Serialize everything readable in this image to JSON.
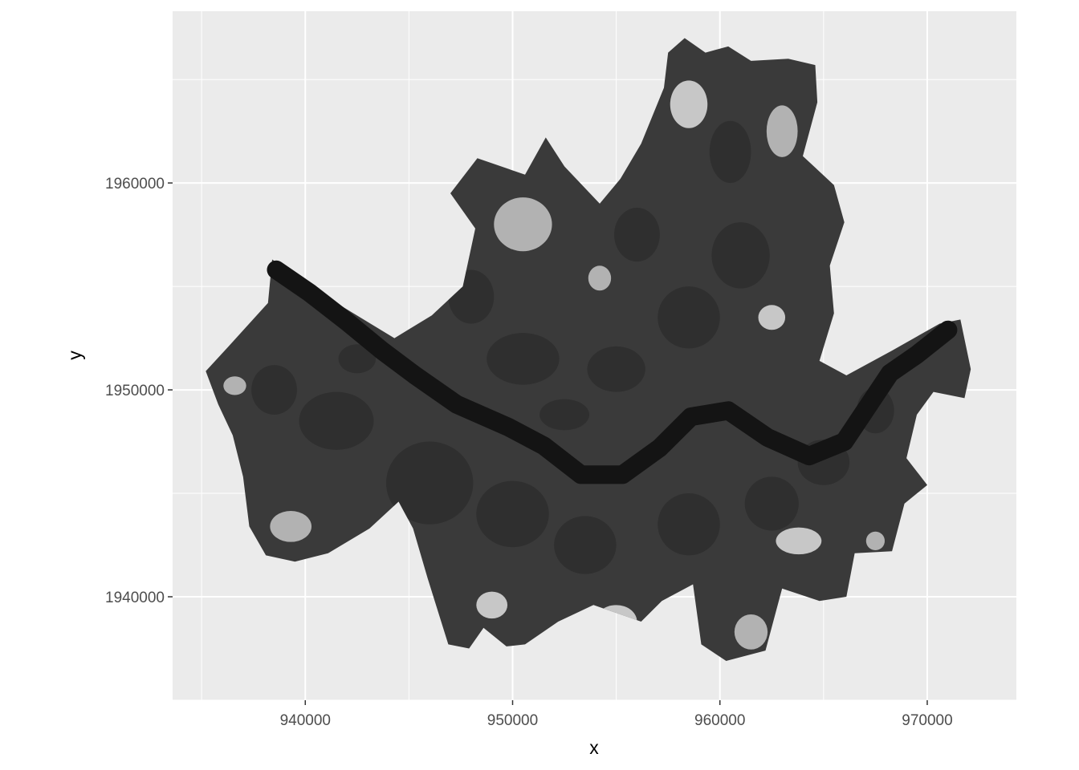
{
  "chart_data": {
    "type": "heatmap",
    "title": "",
    "xlabel": "x",
    "ylabel": "y",
    "xlim": [
      933600,
      974300
    ],
    "ylim": [
      1935000,
      1968300
    ],
    "x_ticks": [
      940000,
      950000,
      960000,
      970000
    ],
    "x_tick_labels": [
      "940000",
      "950000",
      "960000",
      "970000"
    ],
    "y_ticks": [
      1940000,
      1950000,
      1960000
    ],
    "y_tick_labels": [
      "1940000",
      "1950000",
      "1960000"
    ],
    "x_minor": [
      935000,
      945000,
      955000,
      965000
    ],
    "y_minor": [
      1935000,
      1945000,
      1955000,
      1965000
    ],
    "grid": true,
    "legend": "none",
    "colors": {
      "panel_background": "#ebebeb",
      "grid_line": "#ffffff",
      "urban": "#3a3a3a",
      "urban_dark": "#2b2b2b",
      "vegetation": "#b8b8b8",
      "vegetation_light": "#cfcfcf",
      "river": "#141414"
    },
    "raster_region": {
      "outline": [
        [
          935200,
          1950900
        ],
        [
          936300,
          1952100
        ],
        [
          938200,
          1954200
        ],
        [
          938400,
          1956300
        ],
        [
          941500,
          1954200
        ],
        [
          944300,
          1952500
        ],
        [
          946100,
          1953600
        ],
        [
          947600,
          1955000
        ],
        [
          948200,
          1957800
        ],
        [
          947000,
          1959500
        ],
        [
          948300,
          1961200
        ],
        [
          950600,
          1960400
        ],
        [
          951600,
          1962200
        ],
        [
          952500,
          1960800
        ],
        [
          954200,
          1959000
        ],
        [
          955200,
          1960200
        ],
        [
          956200,
          1961900
        ],
        [
          957300,
          1964600
        ],
        [
          957500,
          1966300
        ],
        [
          958300,
          1967000
        ],
        [
          959300,
          1966300
        ],
        [
          960400,
          1966600
        ],
        [
          961500,
          1965900
        ],
        [
          963300,
          1966000
        ],
        [
          964600,
          1965700
        ],
        [
          964700,
          1963900
        ],
        [
          964000,
          1961300
        ],
        [
          965500,
          1959900
        ],
        [
          966000,
          1958100
        ],
        [
          965300,
          1956000
        ],
        [
          965500,
          1953700
        ],
        [
          964800,
          1951400
        ],
        [
          966100,
          1950700
        ],
        [
          968300,
          1951900
        ],
        [
          970600,
          1953200
        ],
        [
          971600,
          1953400
        ],
        [
          972100,
          1951000
        ],
        [
          971800,
          1949600
        ],
        [
          970300,
          1949900
        ],
        [
          969500,
          1948800
        ],
        [
          969000,
          1946700
        ],
        [
          970000,
          1945400
        ],
        [
          968900,
          1944500
        ],
        [
          968300,
          1942200
        ],
        [
          966500,
          1942100
        ],
        [
          966100,
          1940000
        ],
        [
          964800,
          1939800
        ],
        [
          963000,
          1940400
        ],
        [
          962200,
          1937400
        ],
        [
          960300,
          1936900
        ],
        [
          959100,
          1937700
        ],
        [
          958700,
          1940600
        ],
        [
          957200,
          1939800
        ],
        [
          956200,
          1938800
        ],
        [
          953900,
          1939600
        ],
        [
          952200,
          1938800
        ],
        [
          950600,
          1937700
        ],
        [
          949700,
          1937600
        ],
        [
          948600,
          1938500
        ],
        [
          947900,
          1937500
        ],
        [
          946900,
          1937700
        ],
        [
          945900,
          1940900
        ],
        [
          945200,
          1943300
        ],
        [
          944500,
          1944600
        ],
        [
          943100,
          1943300
        ],
        [
          941100,
          1942100
        ],
        [
          939500,
          1941700
        ],
        [
          938100,
          1942000
        ],
        [
          937300,
          1943400
        ],
        [
          937000,
          1945800
        ],
        [
          936500,
          1947800
        ],
        [
          935800,
          1949300
        ],
        [
          935200,
          1950900
        ]
      ]
    },
    "river_centerline": [
      [
        938600,
        1955800
      ],
      [
        940200,
        1954700
      ],
      [
        942000,
        1953300
      ],
      [
        943700,
        1951900
      ],
      [
        945300,
        1950700
      ],
      [
        947300,
        1949300
      ],
      [
        949800,
        1948200
      ],
      [
        951500,
        1947300
      ],
      [
        953300,
        1945900
      ],
      [
        955300,
        1945900
      ],
      [
        957100,
        1947200
      ],
      [
        958600,
        1948700
      ],
      [
        960400,
        1949000
      ],
      [
        962300,
        1947700
      ],
      [
        964300,
        1946800
      ],
      [
        966000,
        1947500
      ],
      [
        967000,
        1949000
      ],
      [
        968200,
        1950800
      ],
      [
        969500,
        1951700
      ],
      [
        971000,
        1952900
      ]
    ],
    "river_width": 900,
    "urban_blobs": [
      [
        946000,
        1945500,
        4200,
        4000
      ],
      [
        950000,
        1944000,
        3500,
        3200
      ],
      [
        953500,
        1942500,
        3000,
        2800
      ],
      [
        958500,
        1943500,
        3000,
        3000
      ],
      [
        962500,
        1944500,
        2600,
        2600
      ],
      [
        965000,
        1946500,
        2500,
        2200
      ],
      [
        941500,
        1948500,
        3600,
        2800
      ],
      [
        938500,
        1950000,
        2200,
        2400
      ],
      [
        950500,
        1951500,
        3500,
        2500
      ],
      [
        955000,
        1951000,
        2800,
        2200
      ],
      [
        958500,
        1953500,
        3000,
        3000
      ],
      [
        961000,
        1956500,
        2800,
        3200
      ],
      [
        956000,
        1957500,
        2200,
        2600
      ],
      [
        948000,
        1954500,
        2200,
        2600
      ],
      [
        960500,
        1961500,
        2000,
        3000
      ],
      [
        967500,
        1949000,
        1800,
        2200
      ],
      [
        942500,
        1951500,
        1800,
        1400
      ],
      [
        952500,
        1948800,
        2400,
        1500
      ]
    ],
    "veg_blobs": [
      [
        950500,
        1958000,
        2800,
        2600
      ],
      [
        958500,
        1963800,
        1800,
        2300
      ],
      [
        963000,
        1962500,
        1500,
        2500
      ],
      [
        955000,
        1938800,
        2000,
        1600
      ],
      [
        961500,
        1938300,
        1600,
        1700
      ],
      [
        963800,
        1942700,
        2200,
        1300
      ],
      [
        939300,
        1943400,
        2000,
        1500
      ],
      [
        949000,
        1939600,
        1500,
        1300
      ],
      [
        936600,
        1950200,
        1100,
        900
      ],
      [
        962500,
        1953500,
        1300,
        1200
      ],
      [
        954200,
        1955400,
        1100,
        1200
      ],
      [
        944800,
        1953300,
        900,
        700
      ],
      [
        967500,
        1942700,
        900,
        900
      ]
    ]
  }
}
